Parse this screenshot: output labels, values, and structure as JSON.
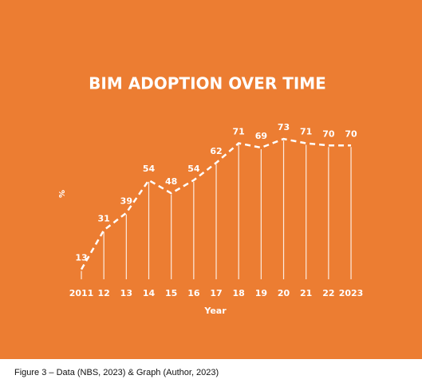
{
  "chart_data": {
    "type": "line",
    "title": "BIM ADOPTION OVER TIME",
    "x_label": "Year",
    "y_label": "%",
    "categories": [
      "2011",
      "12",
      "13",
      "14",
      "15",
      "16",
      "17",
      "18",
      "19",
      "20",
      "21",
      "22",
      "2023"
    ],
    "values": [
      13,
      31,
      39,
      54,
      48,
      54,
      62,
      71,
      69,
      73,
      71,
      70,
      70
    ],
    "color": "#ffffff",
    "ylim": [
      0,
      80
    ]
  },
  "caption": "Figure 3 – Data (NBS, 2023) & Graph (Author, 2023)"
}
